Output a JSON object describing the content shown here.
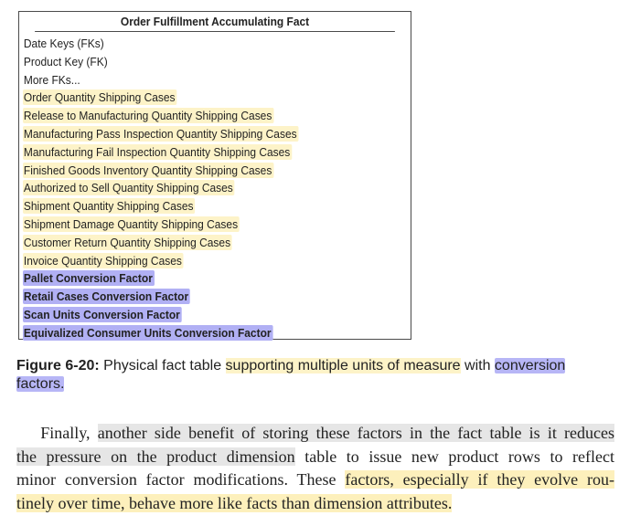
{
  "fact_table": {
    "title": "Order Fulfillment Accumulating Fact",
    "rows": [
      {
        "text": "Date Keys (FKs)",
        "highlight": "none"
      },
      {
        "text": "Product Key (FK)",
        "highlight": "none"
      },
      {
        "text": "More FKs...",
        "highlight": "none"
      },
      {
        "text": "Order Quantity Shipping Cases",
        "highlight": "yellow"
      },
      {
        "text": "Release to Manufacturing Quantity Shipping Cases",
        "highlight": "yellow"
      },
      {
        "text": "Manufacturing Pass Inspection Quantity Shipping Cases",
        "highlight": "yellow"
      },
      {
        "text": "Manufacturing Fail Inspection Quantity Shipping Cases",
        "highlight": "yellow"
      },
      {
        "text": "Finished Goods Inventory Quantity Shipping Cases",
        "highlight": "yellow"
      },
      {
        "text": "Authorized to Sell Quantity Shipping Cases",
        "highlight": "yellow"
      },
      {
        "text": "Shipment Quantity Shipping Cases",
        "highlight": "yellow"
      },
      {
        "text": "Shipment Damage Quantity Shipping Cases",
        "highlight": "yellow"
      },
      {
        "text": "Customer Return Quantity Shipping Cases",
        "highlight": "yellow"
      },
      {
        "text": "Invoice Quantity Shipping Cases",
        "highlight": "yellow"
      },
      {
        "text": "Pallet Conversion Factor",
        "highlight": "purple"
      },
      {
        "text": "Retail Cases Conversion Factor",
        "highlight": "purple"
      },
      {
        "text": "Scan Units Conversion Factor",
        "highlight": "purple"
      },
      {
        "text": "Equivalized Consumer Units Conversion Factor",
        "highlight": "purple"
      }
    ]
  },
  "caption": {
    "label": "Figure 6-20:",
    "text_1": "Physical fact table ",
    "highlight_yellow": "supporting multiple units of measure",
    "text_2": " with ",
    "highlight_purple_1": "conversion",
    "highlight_purple_2": "factors."
  },
  "paragraph": {
    "line_1": {
      "pre": "Finally, ",
      "hl": "another side benefit of storing these factors in the fact table is it reduces"
    },
    "line_2": {
      "hl_a": "the pressure on the product ",
      "hl_b": "dimension",
      "post": " table to issue new product rows to reflect"
    },
    "line_3": {
      "pre": "minor conversion factor modifications. These ",
      "hl": "factors, especially if they evolve rou-"
    },
    "line_4": {
      "hl": "tinely over time, behave more like facts than dimension attributes."
    }
  },
  "colors": {
    "yellow_highlight": "#fdf3c8",
    "purple_highlight": "#b1b0f4",
    "gray_highlight": "#e6e6e6"
  }
}
